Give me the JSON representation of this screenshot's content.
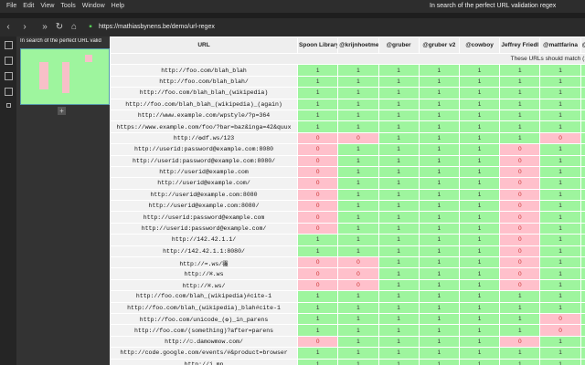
{
  "menu": [
    "File",
    "Edit",
    "View",
    "Tools",
    "Window",
    "Help"
  ],
  "window_title": "In search of the perfect URL validation regex",
  "address": "https://mathiasbynens.be/demo/url-regex",
  "tab_title": "In search of the perfect URL valid",
  "table": {
    "columns": [
      "URL",
      "Spoon Library",
      "@krijnhoetmer",
      "@gruber",
      "@gruber v2",
      "@cowboy",
      "Jeffrey Friedl",
      "@mattfarina",
      "@stephenhay"
    ],
    "section": "These URLs should match (1 → correct)",
    "rows": [
      {
        "url": "http://foo.com/blah_blah",
        "results": [
          1,
          1,
          1,
          1,
          1,
          1,
          1,
          1
        ]
      },
      {
        "url": "http://foo.com/blah_blah/",
        "results": [
          1,
          1,
          1,
          1,
          1,
          1,
          1,
          1
        ]
      },
      {
        "url": "http://foo.com/blah_blah_(wikipedia)",
        "results": [
          1,
          1,
          1,
          1,
          1,
          1,
          1,
          1
        ]
      },
      {
        "url": "http://foo.com/blah_blah_(wikipedia)_(again)",
        "results": [
          1,
          1,
          1,
          1,
          1,
          1,
          1,
          1
        ]
      },
      {
        "url": "http://www.example.com/wpstyle/?p=364",
        "results": [
          1,
          1,
          1,
          1,
          1,
          1,
          1,
          1
        ]
      },
      {
        "url": "https://www.example.com/foo/?bar=baz&inga=42&quux",
        "results": [
          1,
          1,
          1,
          1,
          1,
          1,
          1,
          1
        ]
      },
      {
        "url": "http://✪df.ws/123",
        "results": [
          0,
          0,
          1,
          1,
          1,
          1,
          0,
          1
        ]
      },
      {
        "url": "http://userid:password@example.com:8080",
        "results": [
          0,
          1,
          1,
          1,
          1,
          0,
          1,
          1
        ]
      },
      {
        "url": "http://userid:password@example.com:8080/",
        "results": [
          0,
          1,
          1,
          1,
          1,
          0,
          1,
          1
        ]
      },
      {
        "url": "http://userid@example.com",
        "results": [
          0,
          1,
          1,
          1,
          1,
          0,
          1,
          1
        ]
      },
      {
        "url": "http://userid@example.com/",
        "results": [
          0,
          1,
          1,
          1,
          1,
          0,
          1,
          1
        ]
      },
      {
        "url": "http://userid@example.com:8080",
        "results": [
          0,
          1,
          1,
          1,
          1,
          0,
          1,
          1
        ]
      },
      {
        "url": "http://userid@example.com:8080/",
        "results": [
          0,
          1,
          1,
          1,
          1,
          0,
          1,
          1
        ]
      },
      {
        "url": "http://userid:password@example.com",
        "results": [
          0,
          1,
          1,
          1,
          1,
          0,
          1,
          1
        ]
      },
      {
        "url": "http://userid:password@example.com/",
        "results": [
          0,
          1,
          1,
          1,
          1,
          0,
          1,
          1
        ]
      },
      {
        "url": "http://142.42.1.1/",
        "results": [
          1,
          1,
          1,
          1,
          1,
          0,
          1,
          1
        ]
      },
      {
        "url": "http://142.42.1.1:8080/",
        "results": [
          1,
          1,
          1,
          1,
          1,
          0,
          1,
          1
        ]
      },
      {
        "url": "http://➡.ws/䨹",
        "results": [
          0,
          0,
          1,
          1,
          1,
          0,
          1,
          1
        ]
      },
      {
        "url": "http://⌘.ws",
        "results": [
          0,
          0,
          1,
          1,
          1,
          0,
          1,
          1
        ]
      },
      {
        "url": "http://⌘.ws/",
        "results": [
          0,
          0,
          1,
          1,
          1,
          0,
          1,
          1
        ]
      },
      {
        "url": "http://foo.com/blah_(wikipedia)#cite-1",
        "results": [
          1,
          1,
          1,
          1,
          1,
          1,
          1,
          1
        ]
      },
      {
        "url": "http://foo.com/blah_(wikipedia)_blah#cite-1",
        "results": [
          1,
          1,
          1,
          1,
          1,
          1,
          1,
          1
        ]
      },
      {
        "url": "http://foo.com/unicode_(✪)_in_parens",
        "results": [
          1,
          1,
          1,
          1,
          1,
          1,
          0,
          1
        ]
      },
      {
        "url": "http://foo.com/(something)?after=parens",
        "results": [
          1,
          1,
          1,
          1,
          1,
          1,
          0,
          1
        ]
      },
      {
        "url": "http://☺.damowmow.com/",
        "results": [
          0,
          1,
          1,
          1,
          1,
          0,
          1,
          1
        ]
      },
      {
        "url": "http://code.google.com/events/#&product=browser",
        "results": [
          1,
          1,
          1,
          1,
          1,
          1,
          1,
          1
        ]
      },
      {
        "url": "http://j.mp",
        "results": [
          1,
          1,
          1,
          1,
          1,
          1,
          1,
          1
        ]
      },
      {
        "url": "ftp://foo.bar/baz",
        "results": [
          1,
          1,
          1,
          1,
          1,
          1,
          1,
          1
        ]
      }
    ]
  }
}
